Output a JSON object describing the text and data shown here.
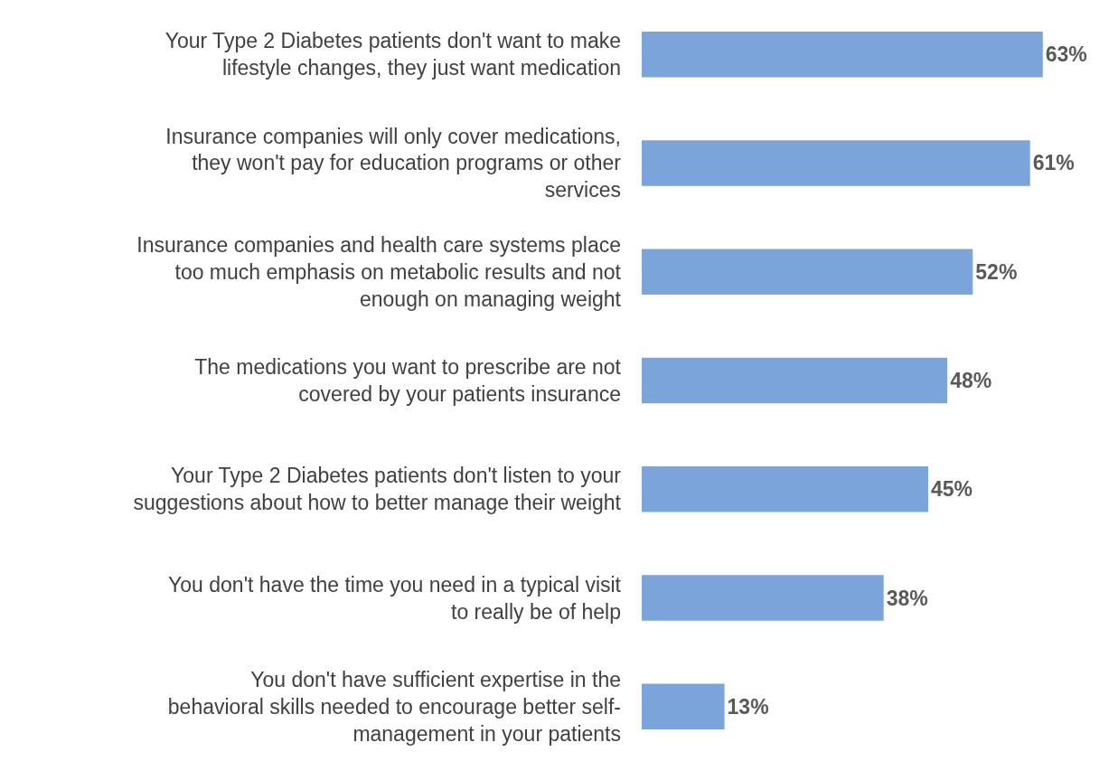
{
  "chart_data": {
    "type": "bar",
    "orientation": "horizontal",
    "categories": [
      "Your Type 2 Diabetes patients don't want to make lifestyle changes, they just want medication",
      "Insurance companies will only cover medications, they won't pay for education programs or other services",
      "Insurance companies and health care systems place too much emphasis on metabolic results and not enough on managing weight",
      "The medications you want to prescribe are not covered by your patients insurance",
      "Your Type 2 Diabetes patients don't listen to your suggestions about how to better manage their weight",
      "You don't have the time you need in a typical visit to really be of help",
      "You don't have sufficient expertise in the behavioral skills needed to encourage better self-management in your patients"
    ],
    "values": [
      63,
      61,
      52,
      48,
      45,
      38,
      13
    ],
    "value_labels": [
      "63%",
      "61%",
      "52%",
      "48%",
      "45%",
      "38%",
      "13%"
    ],
    "color": "#7ba4da",
    "legend": false
  }
}
